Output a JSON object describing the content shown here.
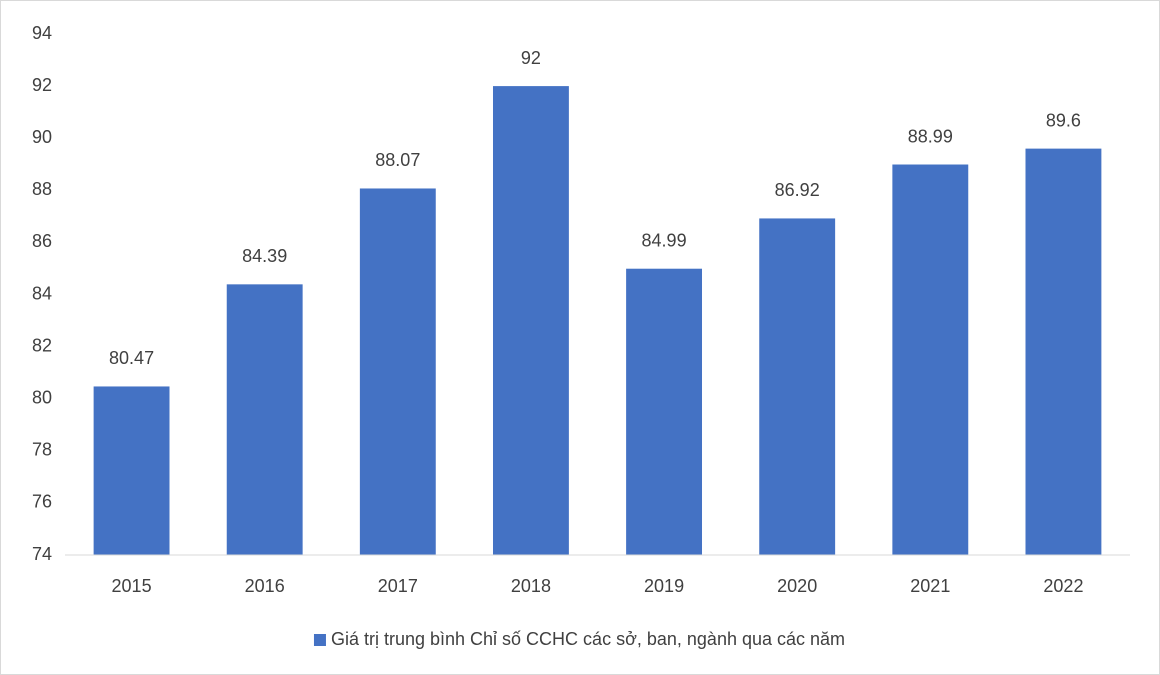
{
  "chart_data": {
    "type": "bar",
    "categories": [
      "2015",
      "2016",
      "2017",
      "2018",
      "2019",
      "2020",
      "2021",
      "2022"
    ],
    "series": [
      {
        "name": "Giá trị trung bình Chỉ số CCHC các sở, ban, ngành qua các năm",
        "color": "#4472c4",
        "values": [
          80.47,
          84.39,
          88.07,
          92,
          84.99,
          86.92,
          88.99,
          89.6
        ]
      }
    ],
    "ylim": [
      74,
      94
    ],
    "yticks": [
      74,
      76,
      78,
      80,
      82,
      84,
      86,
      88,
      90,
      92,
      94
    ],
    "grid": false,
    "legend": "bottom"
  }
}
